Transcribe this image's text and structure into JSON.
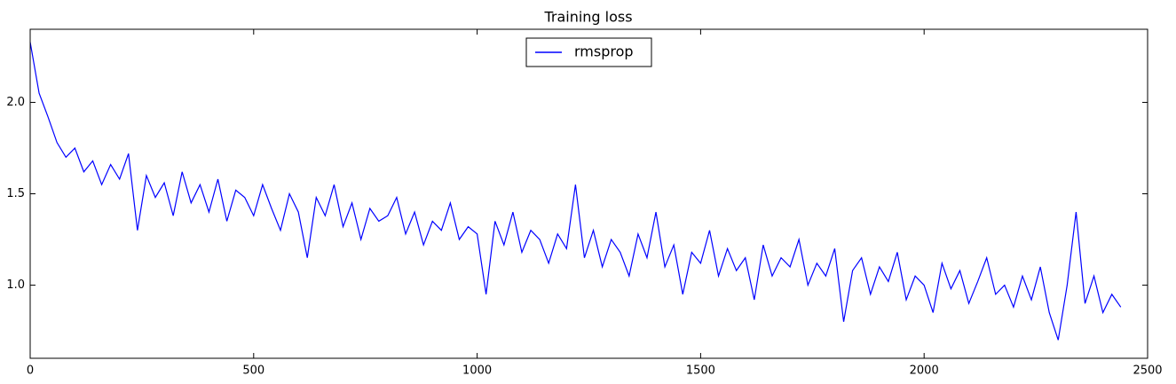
{
  "chart_data": {
    "type": "line",
    "title": "Training loss",
    "x": [
      0,
      20,
      40,
      60,
      80,
      100,
      120,
      140,
      160,
      180,
      200,
      220,
      240,
      260,
      280,
      300,
      320,
      340,
      360,
      380,
      400,
      420,
      440,
      460,
      480,
      500,
      520,
      540,
      560,
      580,
      600,
      620,
      640,
      660,
      680,
      700,
      720,
      740,
      760,
      780,
      800,
      820,
      840,
      860,
      880,
      900,
      920,
      940,
      960,
      980,
      1000,
      1020,
      1040,
      1060,
      1080,
      1100,
      1120,
      1140,
      1160,
      1180,
      1200,
      1220,
      1240,
      1260,
      1280,
      1300,
      1320,
      1340,
      1360,
      1380,
      1400,
      1420,
      1440,
      1460,
      1480,
      1500,
      1520,
      1540,
      1560,
      1580,
      1600,
      1620,
      1640,
      1660,
      1680,
      1700,
      1720,
      1740,
      1760,
      1780,
      1800,
      1820,
      1840,
      1860,
      1880,
      1900,
      1920,
      1940,
      1960,
      1980,
      2000,
      2020,
      2040,
      2060,
      2080,
      2100,
      2120,
      2140,
      2160,
      2180,
      2200,
      2220,
      2240,
      2260,
      2280,
      2300,
      2320,
      2340,
      2360,
      2380,
      2400,
      2420,
      2440
    ],
    "series": [
      {
        "name": "rmsprop",
        "color": "#0000ff",
        "values": [
          2.33,
          2.05,
          1.92,
          1.78,
          1.7,
          1.75,
          1.62,
          1.68,
          1.55,
          1.66,
          1.58,
          1.72,
          1.3,
          1.6,
          1.48,
          1.56,
          1.38,
          1.62,
          1.45,
          1.55,
          1.4,
          1.58,
          1.35,
          1.52,
          1.48,
          1.38,
          1.55,
          1.42,
          1.3,
          1.5,
          1.4,
          1.15,
          1.48,
          1.38,
          1.55,
          1.32,
          1.45,
          1.25,
          1.42,
          1.35,
          1.38,
          1.48,
          1.28,
          1.4,
          1.22,
          1.35,
          1.3,
          1.45,
          1.25,
          1.32,
          1.28,
          0.95,
          1.35,
          1.22,
          1.4,
          1.18,
          1.3,
          1.25,
          1.12,
          1.28,
          1.2,
          1.55,
          1.15,
          1.3,
          1.1,
          1.25,
          1.18,
          1.05,
          1.28,
          1.15,
          1.4,
          1.1,
          1.22,
          0.95,
          1.18,
          1.12,
          1.3,
          1.05,
          1.2,
          1.08,
          1.15,
          0.92,
          1.22,
          1.05,
          1.15,
          1.1,
          1.25,
          1.0,
          1.12,
          1.05,
          1.2,
          0.8,
          1.08,
          1.15,
          0.95,
          1.1,
          1.02,
          1.18,
          0.92,
          1.05,
          1.0,
          0.85,
          1.12,
          0.98,
          1.08,
          0.9,
          1.02,
          1.15,
          0.95,
          1.0,
          0.88,
          1.05,
          0.92,
          1.1,
          0.85,
          0.7,
          1.0,
          1.4,
          0.9,
          1.05,
          0.85,
          0.95,
          0.88
        ]
      }
    ],
    "xlim": [
      0,
      2500
    ],
    "xticks": [
      0,
      500,
      1000,
      1500,
      2000,
      2500
    ],
    "ylim": [
      0.6,
      2.4
    ],
    "yticks": [
      {
        "value": 1.0,
        "label": "1.0"
      },
      {
        "value": 1.5,
        "label": "1.5"
      },
      {
        "value": 2.0,
        "label": "2.0"
      }
    ],
    "legend": "upper center"
  }
}
